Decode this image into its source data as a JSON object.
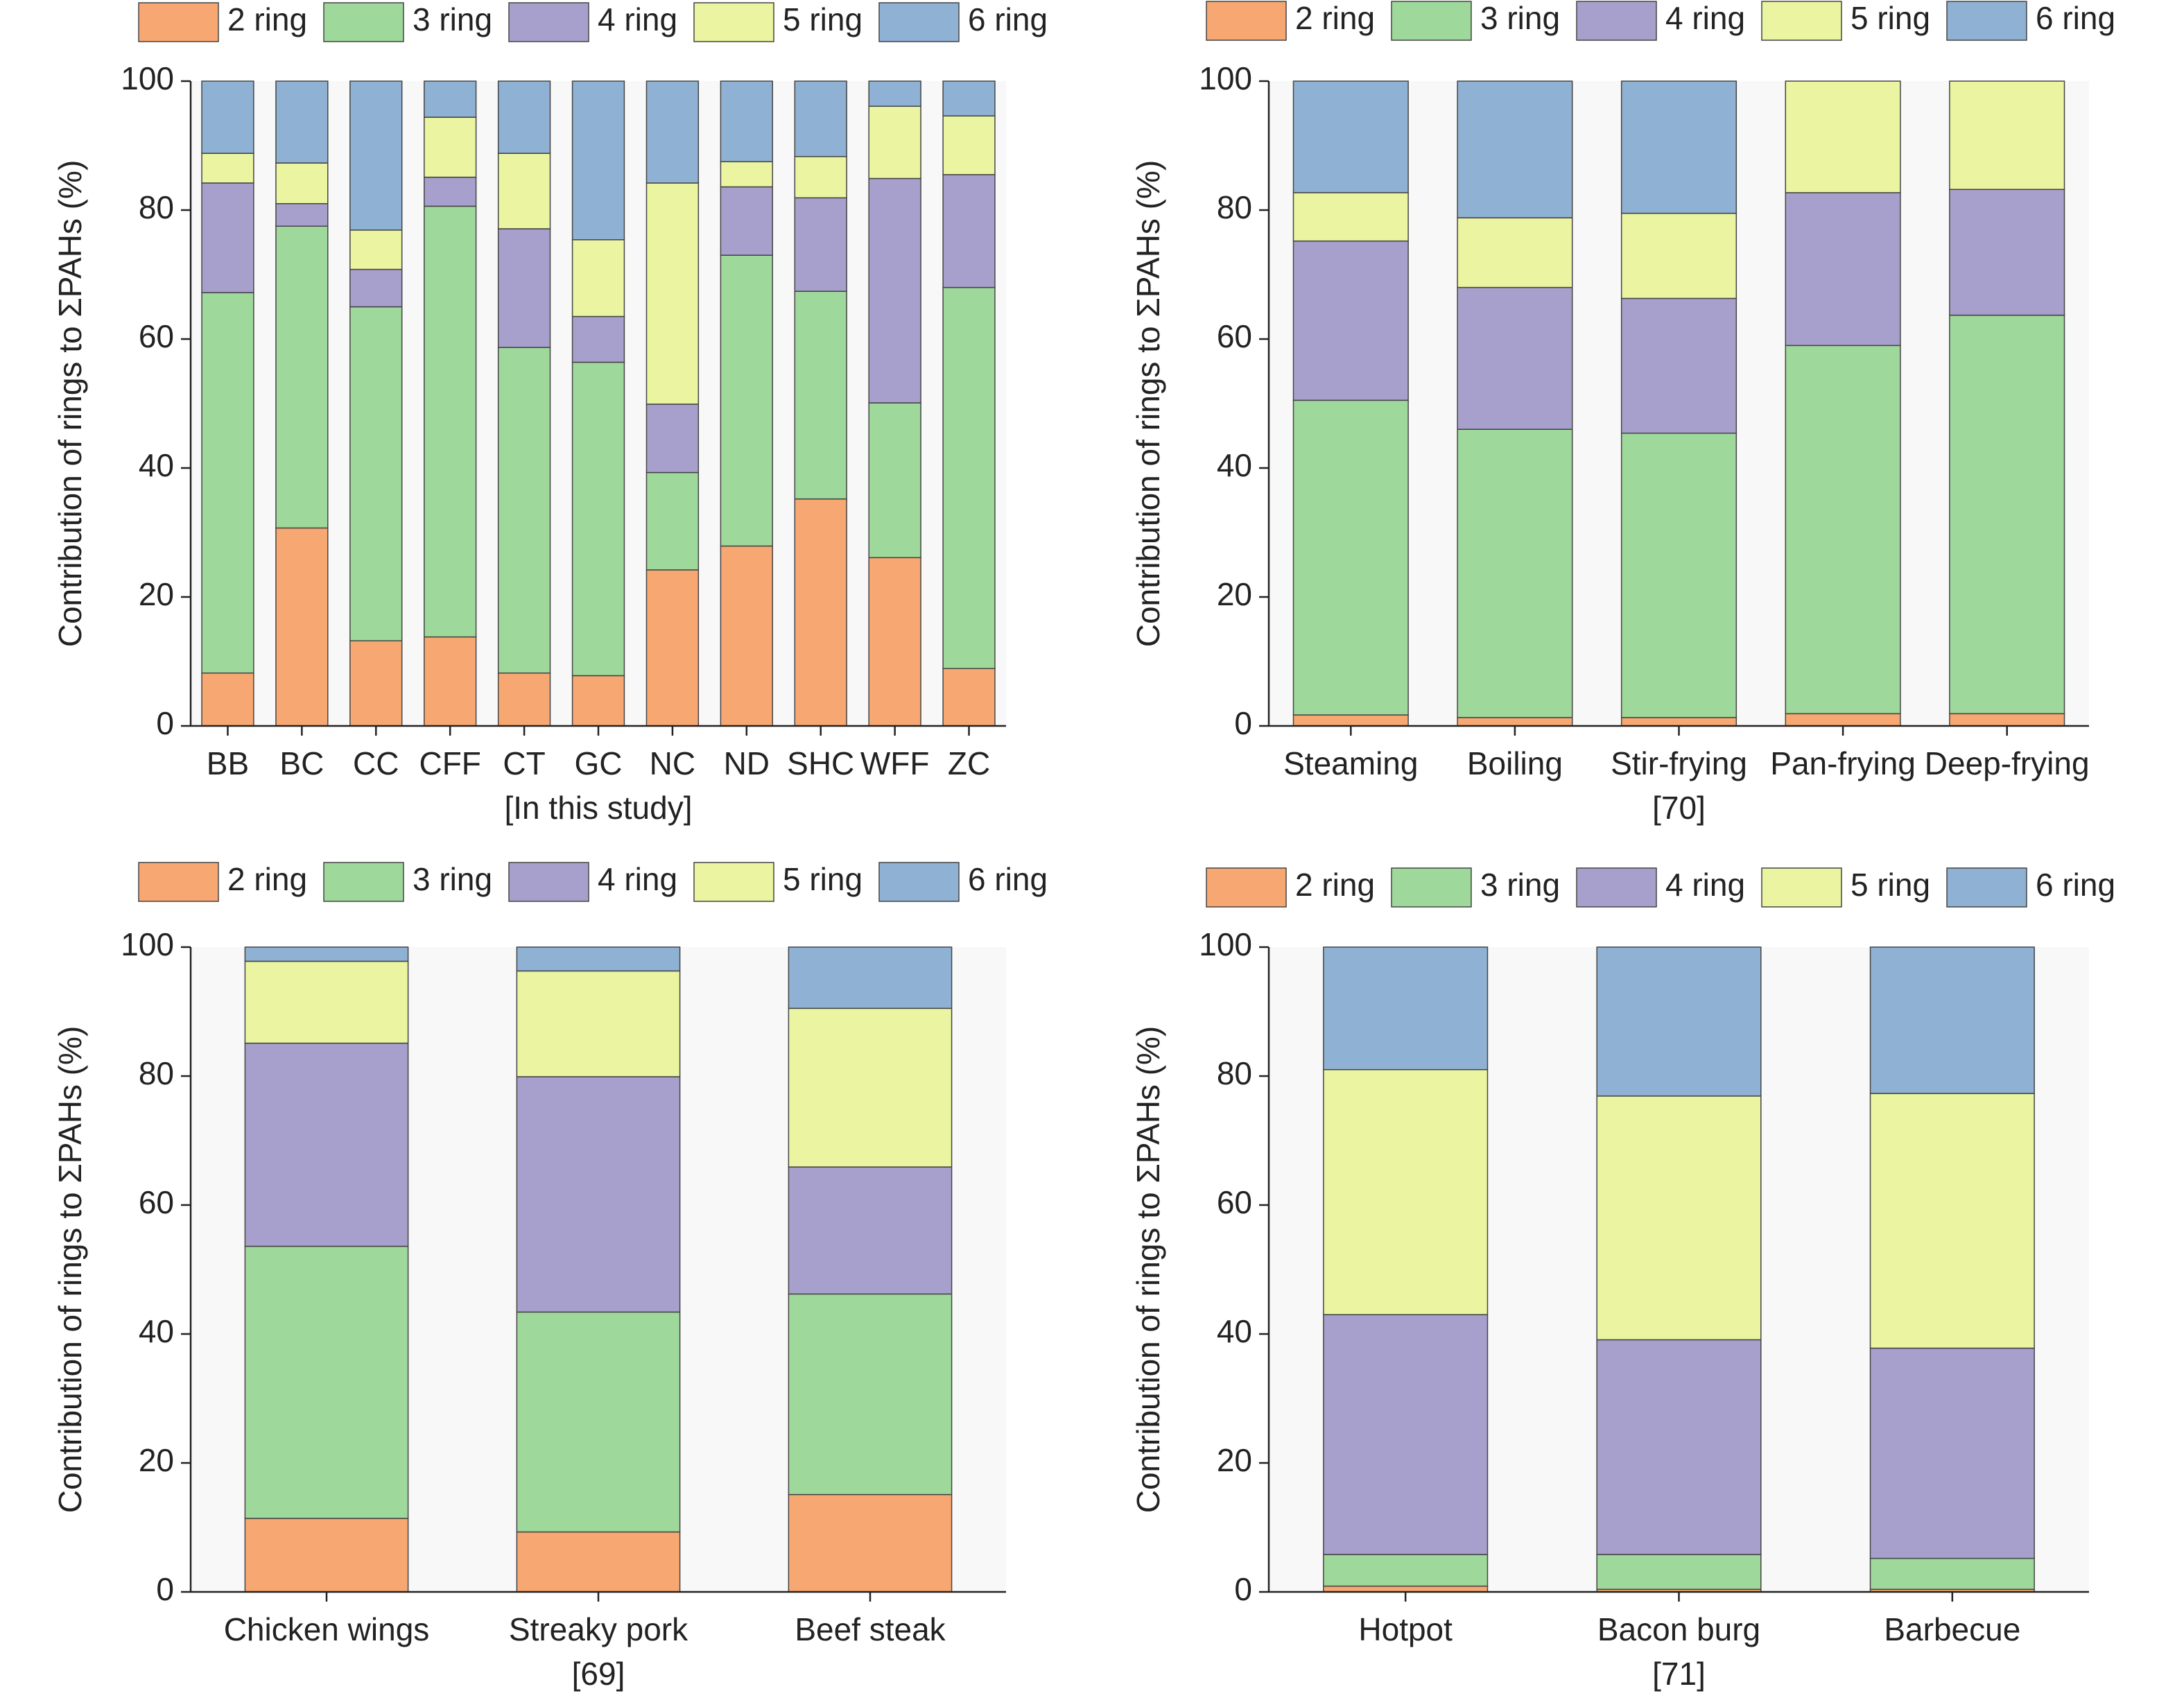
{
  "chart_data": [
    {
      "type": "bar",
      "stacked": true,
      "xlabel": "[In this study]",
      "ylabel": "Contribution of rings to ΣPAHs (%)",
      "categories": [
        "BB",
        "BC",
        "CC",
        "CFF",
        "CT",
        "GC",
        "NC",
        "ND",
        "SHC",
        "WFF",
        "ZC"
      ],
      "series": [
        {
          "name": "2 ring",
          "color": "#f7a872",
          "values": [
            8.2,
            30.7,
            13.2,
            13.8,
            8.2,
            7.8,
            24.2,
            27.9,
            35.2,
            26.1,
            8.9
          ]
        },
        {
          "name": "3 ring",
          "color": "#9fd89b",
          "values": [
            59.0,
            46.8,
            51.8,
            66.8,
            50.5,
            48.6,
            15.1,
            45.1,
            32.2,
            24.0,
            59.1
          ]
        },
        {
          "name": "4 ring",
          "color": "#a8a0cc",
          "values": [
            17.0,
            3.5,
            5.8,
            4.5,
            18.4,
            7.1,
            10.6,
            10.6,
            14.5,
            34.8,
            17.5
          ]
        },
        {
          "name": "5 ring",
          "color": "#ebf4a0",
          "values": [
            4.6,
            6.3,
            6.1,
            9.3,
            11.7,
            11.9,
            34.3,
            3.9,
            6.4,
            11.2,
            9.1
          ]
        },
        {
          "name": "6 ring",
          "color": "#8fb1d3",
          "values": [
            11.2,
            12.7,
            23.1,
            5.6,
            11.2,
            24.6,
            15.8,
            12.5,
            11.7,
            3.9,
            5.4
          ]
        }
      ],
      "ylim": [
        0,
        100
      ],
      "yticks": [
        0,
        20,
        40,
        60,
        80,
        100
      ]
    },
    {
      "type": "bar",
      "stacked": true,
      "xlabel": "[70]",
      "ylabel": "Contribution of rings to ΣPAHs (%)",
      "categories": [
        "Steaming",
        "Boiling",
        "Stir-frying",
        "Pan-frying",
        "Deep-frying"
      ],
      "series": [
        {
          "name": "2 ring",
          "color": "#f7a872",
          "values": [
            1.7,
            1.3,
            1.3,
            1.9,
            1.9
          ]
        },
        {
          "name": "3 ring",
          "color": "#9fd89b",
          "values": [
            48.8,
            44.7,
            44.1,
            57.1,
            61.8
          ]
        },
        {
          "name": "4 ring",
          "color": "#a8a0cc",
          "values": [
            24.7,
            22.0,
            20.9,
            23.7,
            19.5
          ]
        },
        {
          "name": "5 ring",
          "color": "#ebf4a0",
          "values": [
            7.5,
            10.8,
            13.2,
            17.3,
            16.8
          ]
        },
        {
          "name": "6 ring",
          "color": "#8fb1d3",
          "values": [
            17.3,
            21.2,
            20.5,
            0,
            0
          ]
        }
      ],
      "ylim": [
        0,
        100
      ],
      "yticks": [
        0,
        20,
        40,
        60,
        80,
        100
      ]
    },
    {
      "type": "bar",
      "stacked": true,
      "xlabel": "[69]",
      "ylabel": "Contribution of rings to ΣPAHs (%)",
      "categories": [
        "Chicken wings",
        "Streaky pork",
        "Beef steak"
      ],
      "series": [
        {
          "name": "2 ring",
          "color": "#f7a872",
          "values": [
            11.4,
            9.3,
            15.1
          ]
        },
        {
          "name": "3 ring",
          "color": "#9fd89b",
          "values": [
            42.2,
            34.1,
            31.1
          ]
        },
        {
          "name": "4 ring",
          "color": "#a8a0cc",
          "values": [
            31.5,
            36.5,
            19.7
          ]
        },
        {
          "name": "5 ring",
          "color": "#ebf4a0",
          "values": [
            12.7,
            16.4,
            24.6
          ]
        },
        {
          "name": "6 ring",
          "color": "#8fb1d3",
          "values": [
            2.2,
            3.7,
            9.5
          ]
        }
      ],
      "ylim": [
        0,
        100
      ],
      "yticks": [
        0,
        20,
        40,
        60,
        80,
        100
      ]
    },
    {
      "type": "bar",
      "stacked": true,
      "xlabel": "[71]",
      "ylabel": "Contribution of rings to ΣPAHs (%)",
      "categories": [
        "Hotpot",
        "Bacon burg",
        "Barbecue"
      ],
      "series": [
        {
          "name": "2 ring",
          "color": "#f7a872",
          "values": [
            0.9,
            0.4,
            0.4
          ]
        },
        {
          "name": "3 ring",
          "color": "#9fd89b",
          "values": [
            4.9,
            5.4,
            4.8
          ]
        },
        {
          "name": "4 ring",
          "color": "#a8a0cc",
          "values": [
            37.2,
            33.3,
            32.6
          ]
        },
        {
          "name": "5 ring",
          "color": "#ebf4a0",
          "values": [
            38.0,
            37.8,
            39.5
          ]
        },
        {
          "name": "6 ring",
          "color": "#8fb1d3",
          "values": [
            19.0,
            23.1,
            22.7
          ]
        }
      ],
      "ylim": [
        0,
        100
      ],
      "yticks": [
        0,
        20,
        40,
        60,
        80,
        100
      ]
    }
  ]
}
